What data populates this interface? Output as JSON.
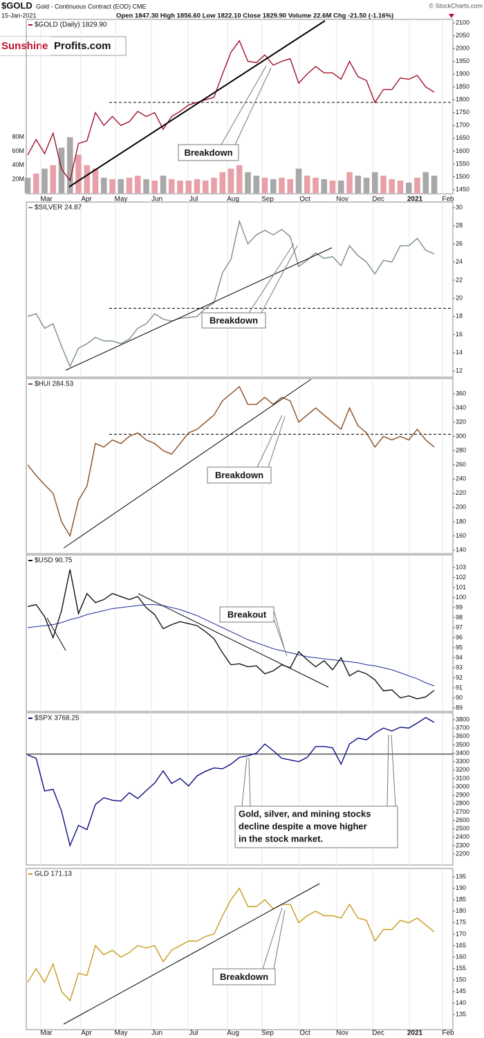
{
  "header": {
    "symbol": "$GOLD",
    "description": "Gold - Continuous Contract (EOD) CME",
    "date": "15-Jan-2021",
    "quote": "Open 1847.30 High 1856.60 Low 1822.10 Close 1829.90 Volume 22.6M Chg -21.50 (-1.16%)",
    "credit": "© StockCharts.com",
    "logo_red": "Sunshine",
    "logo_black": "Profits.com"
  },
  "chart_data": [
    {
      "type": "line",
      "label": "$GOLD (Daily) 1829.90",
      "color": "#a0102c",
      "values": [
        1585,
        1645,
        1590,
        1670,
        1530,
        1485,
        1630,
        1640,
        1750,
        1700,
        1735,
        1700,
        1715,
        1755,
        1735,
        1750,
        1685,
        1735,
        1755,
        1780,
        1790,
        1800,
        1810,
        1900,
        1985,
        2030,
        1950,
        1945,
        1975,
        1935,
        1950,
        1960,
        1865,
        1900,
        1930,
        1905,
        1905,
        1880,
        1950,
        1890,
        1875,
        1790,
        1840,
        1840,
        1885,
        1880,
        1895,
        1850,
        1830
      ],
      "volume": [
        22,
        28,
        35,
        40,
        65,
        80,
        55,
        40,
        35,
        22,
        20,
        20,
        22,
        25,
        20,
        18,
        25,
        20,
        18,
        18,
        20,
        18,
        22,
        30,
        35,
        40,
        30,
        25,
        22,
        20,
        22,
        20,
        35,
        25,
        22,
        20,
        18,
        18,
        30,
        25,
        22,
        30,
        25,
        20,
        18,
        15,
        22,
        30,
        25
      ],
      "volume_up_color": "#e8a0a8",
      "volume_down_color": "#a8a8a8",
      "vlim": [
        11,
        100
      ],
      "vticks": [
        {
          "value": 20,
          "label": "20M"
        },
        {
          "value": 40,
          "label": "40M"
        },
        {
          "value": 60,
          "label": "60M"
        },
        {
          "value": 80,
          "label": "80M"
        }
      ],
      "ylim": [
        1450,
        2100
      ],
      "yticks": [
        1450,
        1500,
        1550,
        1600,
        1650,
        1700,
        1750,
        1800,
        1850,
        1900,
        1950,
        2000,
        2050,
        2100
      ],
      "hline": 1790,
      "hline_dashed": true,
      "annotation": "Breakdown",
      "x_labels": [
        "Mar",
        "Apr",
        "May",
        "Jun",
        "Jul",
        "Aug",
        "Sep",
        "Oct",
        "Nov",
        "Dec",
        "2021",
        "Feb"
      ]
    },
    {
      "type": "line",
      "label": "$SILVER 24.87",
      "color": "#7a8a92",
      "values": [
        18.0,
        18.3,
        16.7,
        17.2,
        14.7,
        12.5,
        14.5,
        15.0,
        15.7,
        15.3,
        15.3,
        15.0,
        15.5,
        16.7,
        17.2,
        18.3,
        17.7,
        17.5,
        17.8,
        17.9,
        18.0,
        18.9,
        19.5,
        22.8,
        24.3,
        28.5,
        26.0,
        27.0,
        27.5,
        27.0,
        27.6,
        26.8,
        23.5,
        24.2,
        25.0,
        24.4,
        24.6,
        23.6,
        25.8,
        24.7,
        24.0,
        22.7,
        24.2,
        24.0,
        25.8,
        25.8,
        26.6,
        25.3,
        24.9
      ],
      "ylim": [
        12,
        30
      ],
      "yticks": [
        12,
        14,
        16,
        18,
        20,
        22,
        24,
        26,
        28,
        30
      ],
      "hline": 18.9,
      "hline_dashed": true,
      "annotation": "Breakdown"
    },
    {
      "type": "line",
      "label": "$HUI 284.53",
      "color": "#8b4a1c",
      "values": [
        260,
        245,
        232,
        220,
        180,
        160,
        210,
        230,
        290,
        285,
        295,
        290,
        300,
        305,
        295,
        290,
        280,
        275,
        290,
        305,
        310,
        320,
        330,
        350,
        360,
        370,
        345,
        345,
        355,
        345,
        355,
        350,
        320,
        330,
        340,
        330,
        320,
        310,
        340,
        315,
        305,
        285,
        300,
        295,
        300,
        295,
        310,
        295,
        285
      ],
      "ylim": [
        140,
        360
      ],
      "yticks": [
        140,
        160,
        180,
        200,
        220,
        240,
        260,
        280,
        300,
        320,
        340,
        360
      ],
      "hline": 303,
      "hline_dashed": true,
      "annotation": "Breakdown"
    },
    {
      "type": "line",
      "label": "$USD 90.75",
      "color": "#111111",
      "values": [
        99.1,
        99.3,
        98.1,
        96.0,
        98.7,
        102.8,
        98.4,
        100.4,
        99.5,
        99.8,
        100.4,
        100.1,
        99.8,
        100.1,
        99.0,
        98.3,
        96.9,
        97.3,
        97.6,
        97.4,
        97.2,
        96.6,
        95.9,
        94.5,
        93.3,
        93.4,
        93.1,
        93.2,
        92.4,
        92.7,
        93.3,
        93.0,
        94.6,
        93.8,
        93.1,
        93.7,
        92.8,
        94.0,
        92.2,
        92.7,
        92.4,
        91.8,
        90.7,
        90.8,
        90.0,
        90.2,
        89.9,
        90.1,
        90.75
      ],
      "ma_values": [
        97.0,
        97.1,
        97.2,
        97.3,
        97.5,
        97.8,
        98.0,
        98.3,
        98.5,
        98.7,
        98.9,
        99.0,
        99.1,
        99.2,
        99.3,
        99.3,
        99.2,
        99.0,
        98.8,
        98.5,
        98.2,
        97.8,
        97.4,
        97.0,
        96.6,
        96.2,
        95.8,
        95.5,
        95.2,
        94.9,
        94.7,
        94.5,
        94.3,
        94.1,
        94.0,
        93.9,
        93.8,
        93.7,
        93.6,
        93.5,
        93.3,
        93.2,
        93.0,
        92.8,
        92.5,
        92.2,
        91.9,
        91.5,
        91.2
      ],
      "ma_color": "#1c2a9a",
      "ylim": [
        89,
        103
      ],
      "yticks": [
        89,
        90,
        91,
        92,
        93,
        94,
        95,
        96,
        97,
        98,
        99,
        100,
        101,
        102,
        103
      ],
      "annotation": "Breakout"
    },
    {
      "type": "line",
      "label": "$SPX 3768.25",
      "color": "#0a0a80",
      "values": [
        3380,
        3340,
        2950,
        2970,
        2710,
        2300,
        2540,
        2490,
        2790,
        2870,
        2840,
        2830,
        2930,
        2860,
        2955,
        3045,
        3190,
        3040,
        3100,
        3010,
        3130,
        3185,
        3225,
        3215,
        3270,
        3350,
        3370,
        3400,
        3510,
        3430,
        3340,
        3320,
        3300,
        3350,
        3480,
        3480,
        3465,
        3270,
        3510,
        3580,
        3560,
        3640,
        3700,
        3665,
        3710,
        3700,
        3760,
        3825,
        3768
      ],
      "ylim": [
        2200,
        3800
      ],
      "yticks": [
        2200,
        2300,
        2400,
        2500,
        2600,
        2700,
        2800,
        2900,
        3000,
        3100,
        3200,
        3300,
        3400,
        3500,
        3600,
        3700,
        3800
      ],
      "hline": 3390,
      "hline_dashed": false,
      "annotation_lines": [
        "Gold, silver, and mining stocks",
        "decline despite a move higher",
        "in the stock market."
      ]
    },
    {
      "type": "line",
      "label": "GLD 171.13",
      "color": "#c89a18",
      "values": [
        149,
        155,
        149,
        157,
        145,
        141,
        153,
        152,
        165,
        161,
        163,
        160,
        162,
        165,
        164,
        165,
        158,
        163,
        165,
        167,
        167,
        169,
        170,
        178,
        185,
        190,
        182,
        182,
        185,
        181,
        183,
        183,
        175,
        178,
        180,
        178,
        178,
        177,
        183,
        177,
        176,
        167,
        172,
        172,
        176,
        175,
        177,
        174,
        171
      ],
      "ylim": [
        135,
        195
      ],
      "yticks": [
        135,
        140,
        145,
        150,
        155,
        160,
        165,
        170,
        175,
        180,
        185,
        190,
        195
      ],
      "annotation": "Breakdown",
      "x_labels": [
        "Mar",
        "Apr",
        "May",
        "Jun",
        "Jul",
        "Aug",
        "Sep",
        "Oct",
        "Nov",
        "Dec",
        "2021",
        "Feb"
      ]
    }
  ]
}
